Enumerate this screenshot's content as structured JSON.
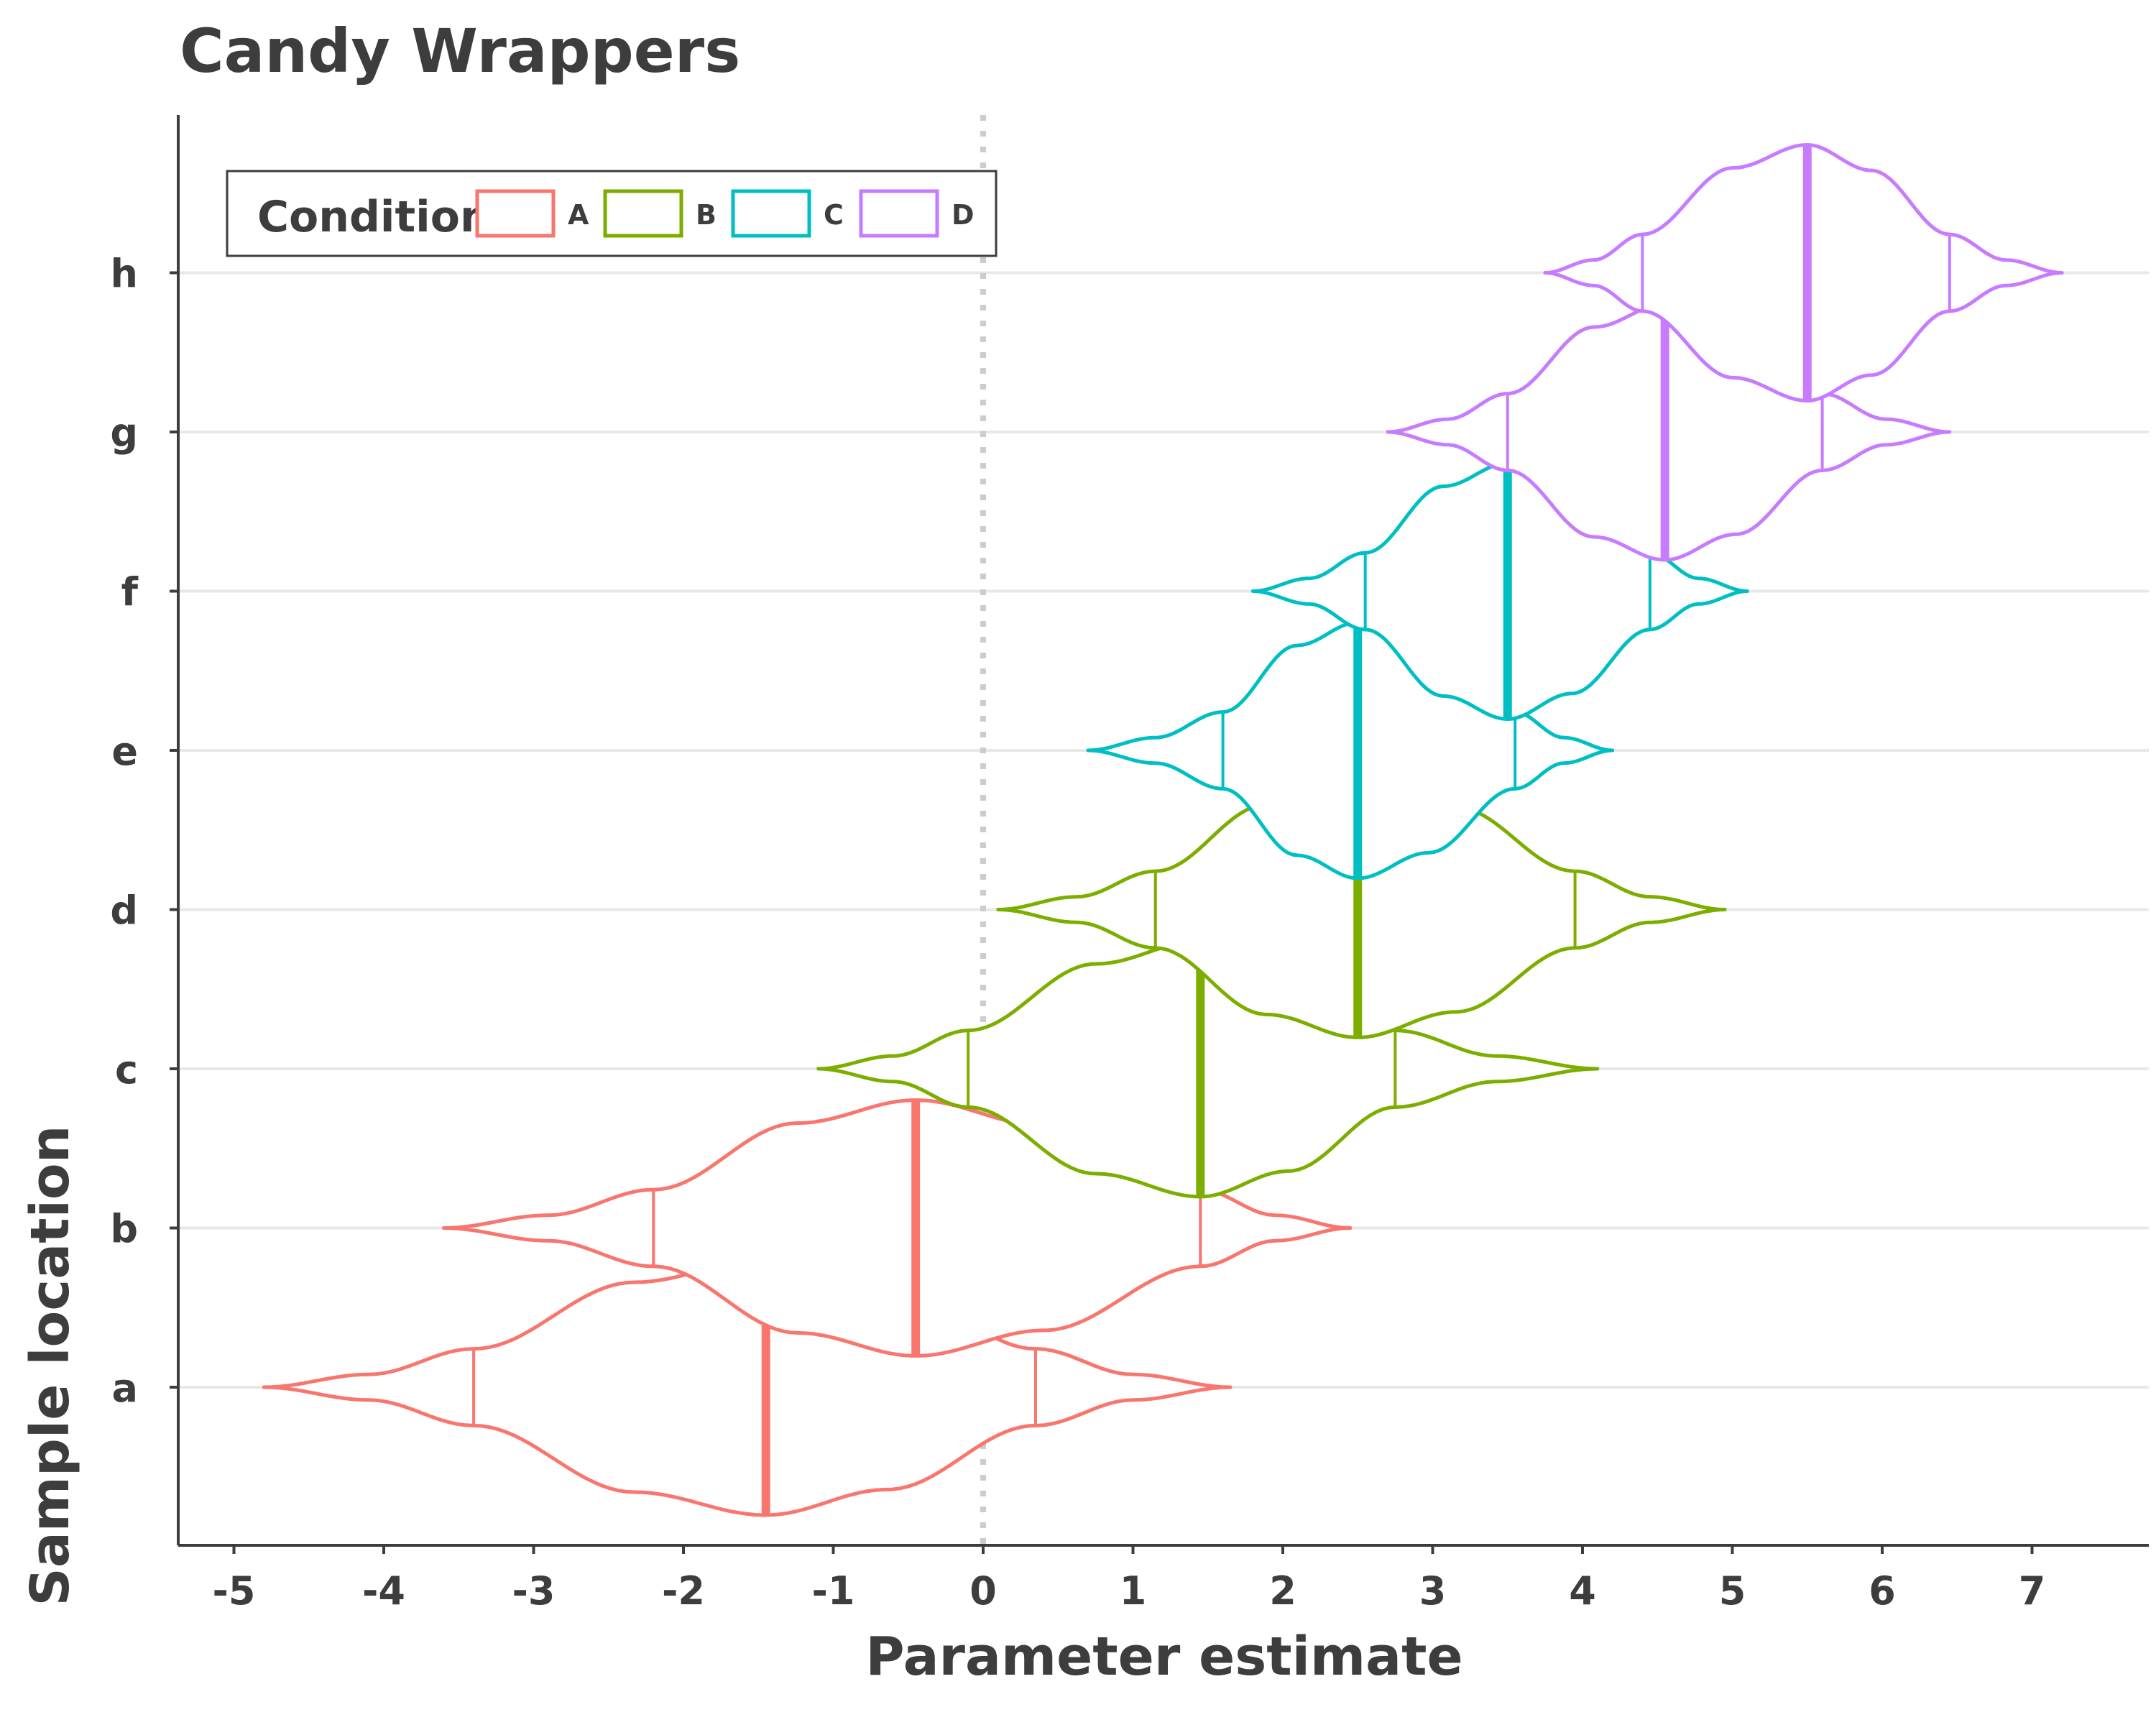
{
  "chart_data": {
    "type": "violin",
    "title": "Candy Wrappers",
    "xlabel": "Parameter estimate",
    "ylabel": "Sample location",
    "xlim": [
      -5.4,
      7.8
    ],
    "x_ticks": [
      "-5",
      "-4",
      "-3",
      "-2",
      "-1",
      "0",
      "1",
      "2",
      "3",
      "4",
      "5",
      "6",
      "7"
    ],
    "y_categories": [
      "a",
      "b",
      "c",
      "d",
      "e",
      "f",
      "g",
      "h"
    ],
    "reference_line": {
      "x": 0,
      "style": "dotted"
    },
    "grid": {
      "horizontal": true,
      "vertical": false
    },
    "legend": {
      "title": "Condition",
      "placement": "top-left",
      "entries": [
        {
          "label": "A",
          "color": "#F8766D"
        },
        {
          "label": "B",
          "color": "#7CAE00"
        },
        {
          "label": "C",
          "color": "#00BFC4"
        },
        {
          "label": "D",
          "color": "#C77CFF"
        }
      ]
    },
    "series": [
      {
        "category": "a",
        "condition": "A",
        "min": -4.8,
        "q_low": -3.4,
        "median": -1.45,
        "q_high": 0.35,
        "max": 1.65
      },
      {
        "category": "b",
        "condition": "A",
        "min": -3.6,
        "q_low": -2.2,
        "median": -0.45,
        "q_high": 1.45,
        "max": 2.45
      },
      {
        "category": "c",
        "condition": "B",
        "min": -1.1,
        "q_low": -0.1,
        "median": 1.45,
        "q_high": 2.75,
        "max": 4.1
      },
      {
        "category": "d",
        "condition": "B",
        "min": 0.1,
        "q_low": 1.15,
        "median": 2.5,
        "q_high": 3.95,
        "max": 4.95
      },
      {
        "category": "e",
        "condition": "C",
        "min": 0.7,
        "q_low": 1.6,
        "median": 2.5,
        "q_high": 3.55,
        "max": 4.2
      },
      {
        "category": "f",
        "condition": "C",
        "min": 1.8,
        "q_low": 2.55,
        "median": 3.5,
        "q_high": 4.45,
        "max": 5.1
      },
      {
        "category": "g",
        "condition": "D",
        "min": 2.7,
        "q_low": 3.5,
        "median": 4.55,
        "q_high": 5.6,
        "max": 6.45
      },
      {
        "category": "h",
        "condition": "D",
        "min": 3.75,
        "q_low": 4.4,
        "median": 5.5,
        "q_high": 6.45,
        "max": 7.2
      }
    ]
  }
}
